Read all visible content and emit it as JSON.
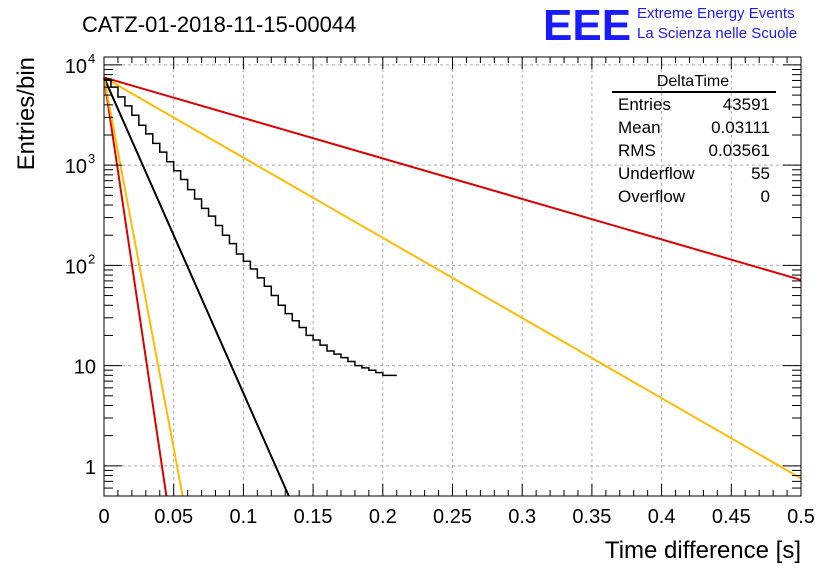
{
  "header": {
    "title": "CATZ-01-2018-11-15-00044",
    "logo_text": "EEE",
    "logo_line1": "Extreme Energy Events",
    "logo_line2": "La Scienza nelle Scuole",
    "logo_color": "#1a1aff"
  },
  "stats": {
    "name": "DeltaTime",
    "rows": [
      {
        "label": "Entries",
        "value": "43591"
      },
      {
        "label": "Mean",
        "value": "0.03111"
      },
      {
        "label": "RMS",
        "value": "0.03561"
      },
      {
        "label": "Underflow",
        "value": "55"
      },
      {
        "label": "Overflow",
        "value": "0"
      }
    ]
  },
  "chart_data": {
    "type": "line",
    "xlabel": "Time difference [s]",
    "ylabel": "Entries/bin",
    "xlim": [
      0,
      0.5
    ],
    "ylim": [
      0.5,
      12000
    ],
    "log_y": true,
    "grid": true,
    "x_ticks": [
      "0",
      "0.05",
      "0.1",
      "0.15",
      "0.2",
      "0.25",
      "0.3",
      "0.35",
      "0.4",
      "0.45",
      "0.5"
    ],
    "y_ticks": [
      {
        "value": 1,
        "label": "1"
      },
      {
        "value": 10,
        "label": "10"
      },
      {
        "value": 100,
        "label": "10",
        "exp": "2"
      },
      {
        "value": 1000,
        "label": "10",
        "exp": "3"
      },
      {
        "value": 10000,
        "label": "10",
        "exp": "4"
      }
    ],
    "histogram": {
      "color": "#000000",
      "bin_width": 0.005,
      "values": [
        7200,
        6000,
        4800,
        3900,
        3150,
        2500,
        2050,
        1650,
        1350,
        1080,
        880,
        720,
        570,
        460,
        370,
        310,
        250,
        200,
        165,
        130,
        110,
        92,
        75,
        62,
        50,
        40,
        33,
        28,
        24,
        20,
        18,
        16,
        14,
        13,
        12,
        11,
        10,
        9.5,
        9,
        8.5,
        8,
        8
      ]
    },
    "fit_lines": [
      {
        "color": "#000000",
        "y0": 7500,
        "slope_per_s": -31.5
      },
      {
        "color": "#dd0000",
        "y0": 7500,
        "slope_per_s": -93.3
      },
      {
        "color": "#ffbb00",
        "y0": 7500,
        "slope_per_s": -74.0
      },
      {
        "color": "#ffbb00",
        "y0": 7500,
        "slope_per_s": -8.0
      },
      {
        "color": "#dd0000",
        "y0": 7500,
        "slope_per_s": -4.04
      }
    ]
  }
}
